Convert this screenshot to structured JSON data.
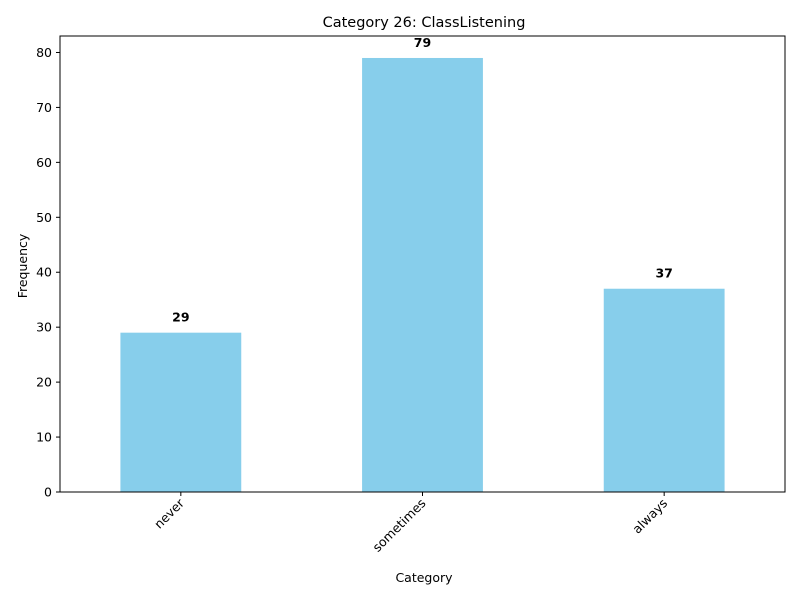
{
  "chart_data": {
    "type": "bar",
    "title": "Category 26: ClassListening",
    "xlabel": "Category",
    "ylabel": "Frequency",
    "categories": [
      "never",
      "sometimes",
      "always"
    ],
    "values": [
      29,
      79,
      37
    ],
    "data_labels": [
      "29",
      "79",
      "37"
    ],
    "ylim": [
      0,
      83
    ],
    "yticks": [
      0,
      10,
      20,
      30,
      40,
      50,
      60,
      70,
      80
    ],
    "ytick_labels": [
      "0",
      "10",
      "20",
      "30",
      "40",
      "50",
      "60",
      "70",
      "80"
    ],
    "bar_color": "#87CEEB",
    "grid": false,
    "legend": "none",
    "xtick_rotation": "45 degrees"
  }
}
